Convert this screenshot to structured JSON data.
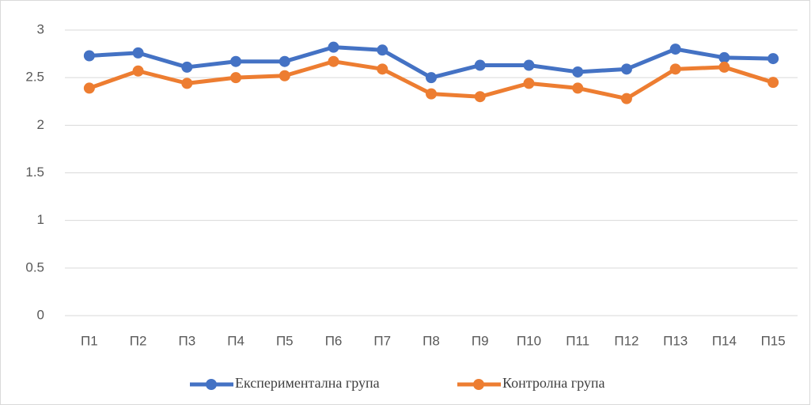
{
  "chart_data": {
    "type": "line",
    "categories": [
      "П1",
      "П2",
      "П3",
      "П4",
      "П5",
      "П6",
      "П7",
      "П8",
      "П9",
      "П10",
      "П11",
      "П12",
      "П13",
      "П14",
      "П15"
    ],
    "series": [
      {
        "name": "Експериментална група",
        "color": "#4472c4",
        "values": [
          2.73,
          2.76,
          2.61,
          2.67,
          2.67,
          2.82,
          2.79,
          2.5,
          2.63,
          2.63,
          2.56,
          2.59,
          2.8,
          2.71,
          2.7
        ]
      },
      {
        "name": "Контролна група",
        "color": "#ed7d31",
        "values": [
          2.39,
          2.57,
          2.44,
          2.5,
          2.52,
          2.67,
          2.59,
          2.33,
          2.3,
          2.44,
          2.39,
          2.28,
          2.59,
          2.61,
          2.45
        ]
      }
    ],
    "ylim": [
      0,
      3
    ],
    "yticks": [
      0,
      0.5,
      1,
      1.5,
      2,
      2.5,
      3
    ],
    "grid": true,
    "legend": "bottom"
  }
}
